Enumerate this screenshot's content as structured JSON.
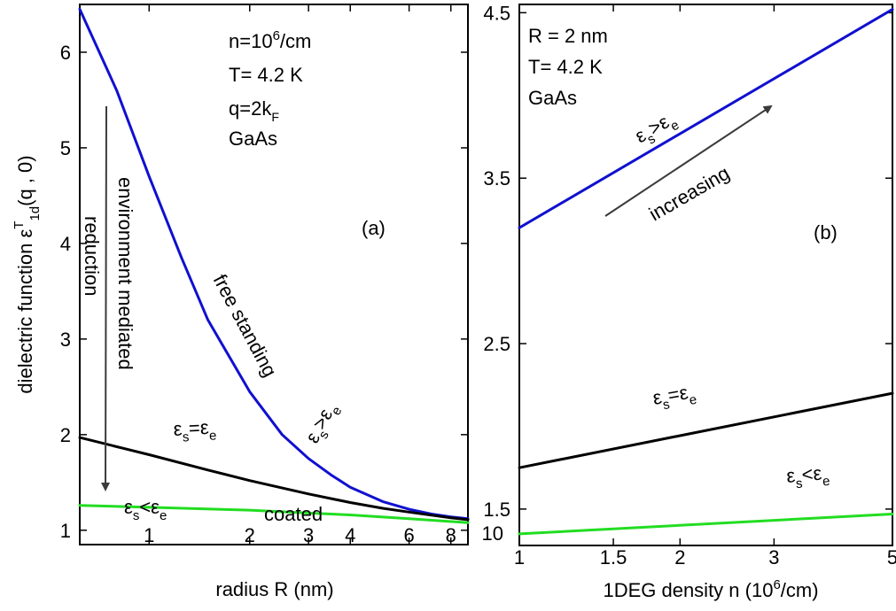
{
  "chart_data": [
    {
      "id": "a",
      "type": "line",
      "panel_label": "(a)",
      "xscale": "log",
      "xlim": [
        0.62,
        9.0
      ],
      "ylim": [
        0.85,
        6.5
      ],
      "xticks": [
        1,
        2,
        3,
        4,
        6,
        8
      ],
      "xtick_labels": [
        "1",
        "2",
        "3",
        "4",
        "6",
        "8"
      ],
      "yticks": [
        1,
        2,
        3,
        4,
        5,
        6
      ],
      "ytick_labels": [
        "1",
        "2",
        "3",
        "4",
        "5",
        "6"
      ],
      "xlabel": "radius R (nm)",
      "ylabel": {
        "main": "dielectric function ε",
        "sup": "T",
        "sub": "1d",
        "tail": "(q , 0)"
      },
      "series": [
        {
          "name": "free standing (εs>εe)",
          "color": "#1010d0",
          "x": [
            0.62,
            0.8,
            1.0,
            1.25,
            1.5,
            2.0,
            2.5,
            3.0,
            3.5,
            4.0,
            5.0,
            6.0,
            7.0,
            8.0,
            9.0
          ],
          "y": [
            6.45,
            5.6,
            4.7,
            3.85,
            3.2,
            2.45,
            2.0,
            1.75,
            1.58,
            1.45,
            1.3,
            1.22,
            1.17,
            1.14,
            1.12
          ]
        },
        {
          "name": "εs=εe",
          "color": "#000000",
          "x": [
            0.62,
            1.0,
            1.5,
            2.0,
            3.0,
            4.0,
            5.0,
            6.0,
            8.0,
            9.0
          ],
          "y": [
            1.97,
            1.79,
            1.63,
            1.52,
            1.38,
            1.29,
            1.23,
            1.19,
            1.13,
            1.11
          ]
        },
        {
          "name": "coated (εs<εe)",
          "color": "#22dd22",
          "x": [
            0.62,
            1.0,
            2.0,
            3.0,
            4.0,
            6.0,
            9.0
          ],
          "y": [
            1.26,
            1.24,
            1.21,
            1.18,
            1.16,
            1.12,
            1.08
          ]
        }
      ],
      "annotations": {
        "params": [
          "n=10",
          "6",
          "/cm",
          "T= 4.2 K",
          "q=2k",
          "F",
          "GaAs"
        ],
        "free_standing": "free standing",
        "es_gt_ee": {
          "e1": "ε",
          "s": "s",
          "op": ">",
          "e2": "ε",
          "sub2": "e"
        },
        "es_eq_ee": {
          "e1": "ε",
          "s": "s",
          "op": "=",
          "e2": "ε",
          "sub2": "e"
        },
        "es_lt_ee": {
          "e1": "ε",
          "s": "s",
          "op": "<",
          "e2": "ε",
          "sub2": "e"
        },
        "coated": "coated",
        "environment_mediated": "environment mediated",
        "reduction": "reduction"
      }
    },
    {
      "id": "b",
      "type": "line",
      "panel_label": "(b)",
      "xscale": "log",
      "xlim": [
        1.0,
        5.0
      ],
      "ylim": [
        1.28,
        4.55
      ],
      "xticks": [
        1,
        1.5,
        2,
        3,
        5
      ],
      "xtick_labels": [
        "1",
        "1.5",
        "2",
        "3",
        "5"
      ],
      "yticks": [
        1.5,
        2.5,
        3.5,
        4.5
      ],
      "ytick_labels": [
        "1.5",
        "2.5",
        "3.5",
        "4.5"
      ],
      "extra_ytick_label": "10",
      "xlabel": {
        "main": "1DEG density n (10",
        "sup": "6",
        "tail": "/cm)"
      },
      "series": [
        {
          "name": "εs>εe",
          "color": "#1010d0",
          "x": [
            1.0,
            5.0
          ],
          "y": [
            3.2,
            4.52
          ]
        },
        {
          "name": "εs=εe",
          "color": "#000000",
          "x": [
            1.0,
            5.0
          ],
          "y": [
            1.75,
            2.2
          ]
        },
        {
          "name": "εs<εe",
          "color": "#22dd22",
          "x": [
            1.0,
            5.0
          ],
          "y": [
            1.35,
            1.47
          ]
        }
      ],
      "annotations": {
        "params": [
          "R = 2 nm",
          "T= 4.2 K",
          "GaAs"
        ],
        "increasing": "increasing",
        "es_gt_ee": {
          "e1": "ε",
          "s": "s",
          "op": ">",
          "e2": "ε",
          "sub2": "e"
        },
        "es_eq_ee": {
          "e1": "ε",
          "s": "s",
          "op": "=",
          "e2": "ε",
          "sub2": "e"
        },
        "es_lt_ee": {
          "e1": "ε",
          "s": "s",
          "op": "<",
          "e2": "ε",
          "sub2": "e"
        }
      }
    }
  ]
}
